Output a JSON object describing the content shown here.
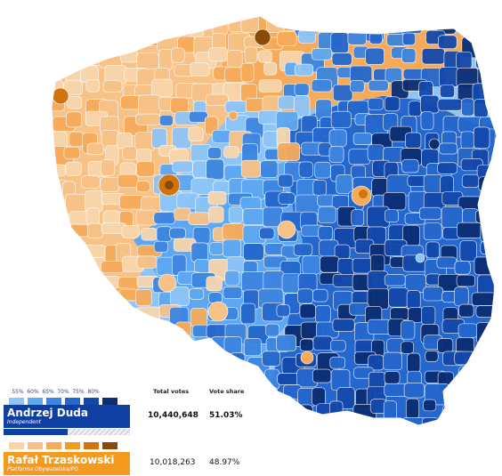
{
  "colors": {
    "duda_scale": [
      "#8ec4f7",
      "#5ea8f2",
      "#3d85e0",
      "#2567cd",
      "#1448ab",
      "#0b2e73"
    ],
    "trzaskowski_scale": [
      "#f8d5ab",
      "#f7c287",
      "#f6ab5a",
      "#f39a1f",
      "#d0740e",
      "#8a4a08"
    ],
    "duda_main": "#0f3fa0",
    "trzaskowski_main": "#f39a1f",
    "border": "#ffffff"
  },
  "legend": {
    "scale_labels": [
      "55%",
      "60%",
      "65%",
      "70%",
      "75%",
      "80%"
    ],
    "col_total_votes": "Total votes",
    "col_vote_share": "Vote share"
  },
  "candidates": [
    {
      "name": "Andrzej Duda",
      "party": "Independent",
      "total_votes": "10,440,648",
      "vote_share": "51.03%",
      "share_value": 51.03,
      "winner": true
    },
    {
      "name": "Rafał Trzaskowski",
      "party": "Platforma Obywatelska/PO",
      "total_votes": "10,018,263",
      "vote_share": "48.97%",
      "share_value": 48.97,
      "winner": false
    }
  ]
}
